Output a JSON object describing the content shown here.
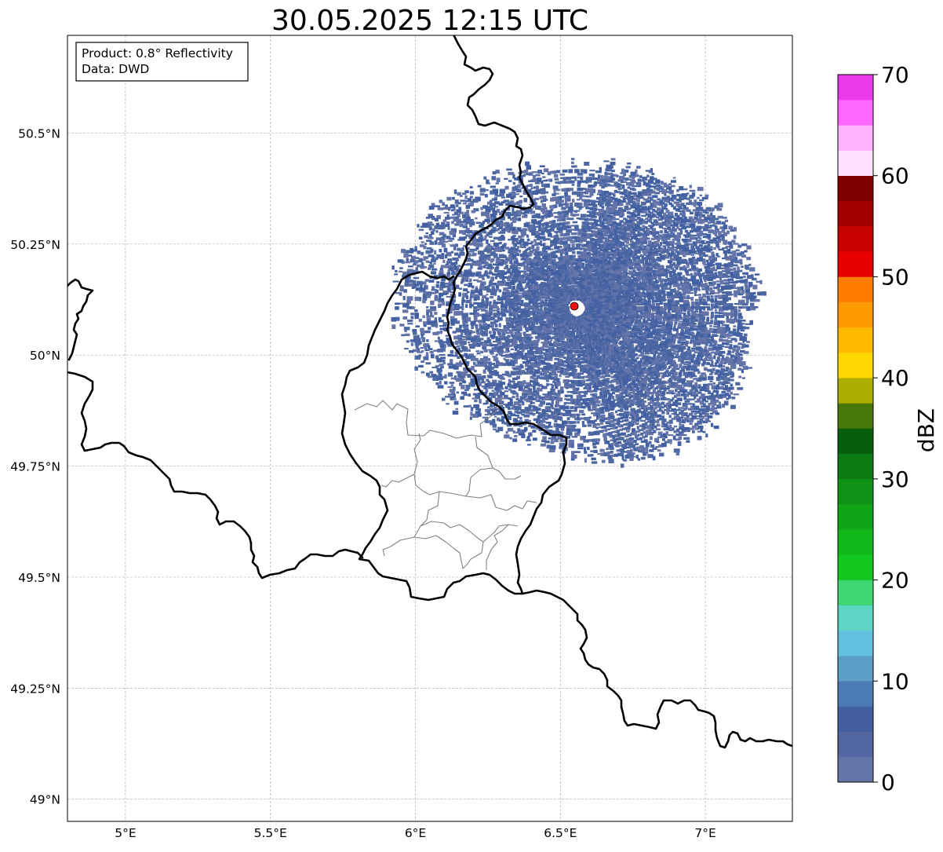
{
  "title": "30.05.2025 12:15 UTC",
  "info_box": {
    "product_line": "Product: 0.8° Reflectivity",
    "data_line": "Data: DWD"
  },
  "map": {
    "lon_range": [
      4.8,
      7.3
    ],
    "lat_range": [
      48.95,
      50.72
    ],
    "lon_ticks": [
      5.0,
      5.5,
      6.0,
      6.5,
      7.0
    ],
    "lon_tick_labels": [
      "5°E",
      "5.5°E",
      "6°E",
      "6.5°E",
      "7°E"
    ],
    "lat_ticks": [
      49.0,
      49.25,
      49.5,
      49.75,
      50.0,
      50.25,
      50.5
    ],
    "lat_tick_labels": [
      "49°N",
      "49.25°N",
      "49.5°N",
      "49.75°N",
      "50°N",
      "50.25°N",
      "50.5°N"
    ],
    "grid": true,
    "radar_site": {
      "lon": 6.548,
      "lat": 50.11,
      "color": "#ee1111"
    },
    "echo_colors": [
      "#6474a9",
      "#4e68a3",
      "#4260a2"
    ]
  },
  "colorbar": {
    "label": "dBZ",
    "min": 0,
    "max": 70,
    "tick_values": [
      0,
      10,
      20,
      30,
      40,
      50,
      60,
      70
    ],
    "tick_labels": [
      "0",
      "10",
      "20",
      "30",
      "40",
      "50",
      "60",
      "70"
    ],
    "colors": [
      "#6474a9",
      "#5266a1",
      "#425ea1",
      "#4b7bb2",
      "#5b9ec8",
      "#63c1df",
      "#5dd6c6",
      "#3dd673",
      "#12c81e",
      "#10b81a",
      "#0fa518",
      "#0e9216",
      "#0b7a12",
      "#075f0e",
      "#48780a",
      "#aeae02",
      "#ffd600",
      "#feb900",
      "#fe9900",
      "#fe7c00",
      "#e80000",
      "#c70000",
      "#a50000",
      "#7f0000",
      "#ffe0ff",
      "#ffb2ff",
      "#ff66ff",
      "#e83ae8"
    ]
  }
}
